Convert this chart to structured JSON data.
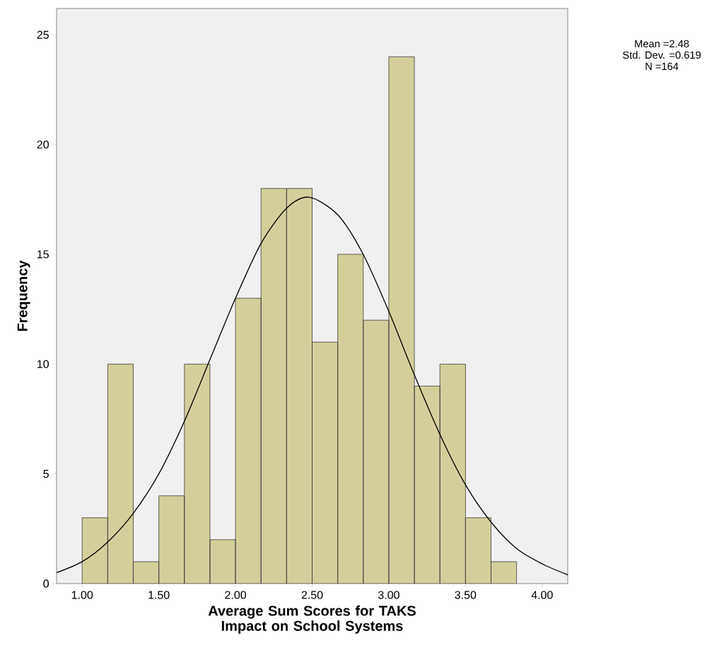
{
  "chart_data": {
    "type": "histogram",
    "xlabel": "Average Sum Scores for TAKS Impact on School Systems",
    "ylabel": "Frequency",
    "annotations": [
      "Mean =2.48",
      "Std. Dev. =0.619",
      "N =164"
    ],
    "series": [
      {
        "color": "#d4cf9a",
        "bins": [
          1.0,
          1.1667,
          1.3333,
          1.5,
          1.6667,
          1.8333,
          2.0,
          2.1667,
          2.3333,
          2.5,
          2.6667,
          2.8333,
          3.0,
          3.1667,
          3.3333,
          3.5,
          3.6667,
          3.8333
        ],
        "values": [
          3,
          10,
          1,
          4,
          10,
          2,
          13,
          18,
          18,
          11,
          15,
          12,
          24,
          9,
          10,
          3,
          1
        ]
      },
      {
        "type": "line",
        "color": "#000000",
        "x": [
          0.833,
          1.0,
          1.167,
          1.333,
          1.5,
          1.667,
          1.833,
          2.0,
          2.167,
          2.333,
          2.48,
          2.667,
          2.833,
          3.0,
          3.167,
          3.333,
          3.5,
          3.667,
          3.833,
          4.0,
          4.167
        ],
        "values": [
          0.5,
          1.0,
          1.9,
          3.2,
          5.0,
          7.4,
          10.2,
          13.0,
          15.5,
          17.1,
          17.6,
          16.8,
          15.0,
          12.4,
          9.5,
          6.8,
          4.5,
          2.8,
          1.6,
          0.9,
          0.4
        ]
      }
    ],
    "xlim": [
      0.833,
      4.167
    ],
    "ylim": [
      0,
      26.2
    ],
    "xticks": [
      {
        "value": 1,
        "label": "1.00"
      },
      {
        "value": 1.5,
        "label": "1.50"
      },
      {
        "value": 2,
        "label": "2.00"
      },
      {
        "value": 2.5,
        "label": "2.50"
      },
      {
        "value": 3,
        "label": "3.00"
      },
      {
        "value": 3.5,
        "label": "3.50"
      },
      {
        "value": 4,
        "label": "4.00"
      }
    ],
    "yticks": [
      0,
      5,
      10,
      15,
      20,
      25
    ]
  }
}
